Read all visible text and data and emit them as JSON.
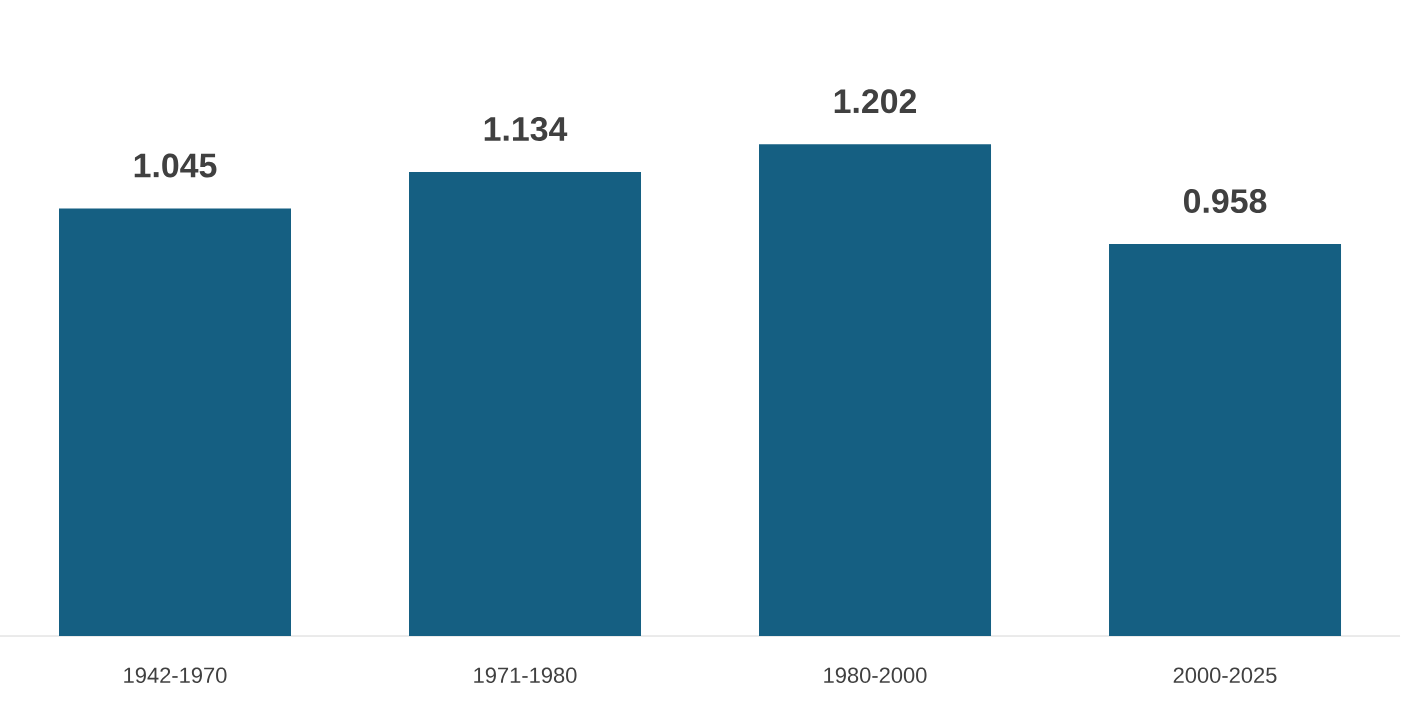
{
  "chart_data": {
    "type": "bar",
    "categories": [
      "1942-1970",
      "1971-1980",
      "1980-2000",
      "2000-2025"
    ],
    "values": [
      1.045,
      1.134,
      1.202,
      0.958
    ],
    "color": "#155f82",
    "data_labels": true
  }
}
